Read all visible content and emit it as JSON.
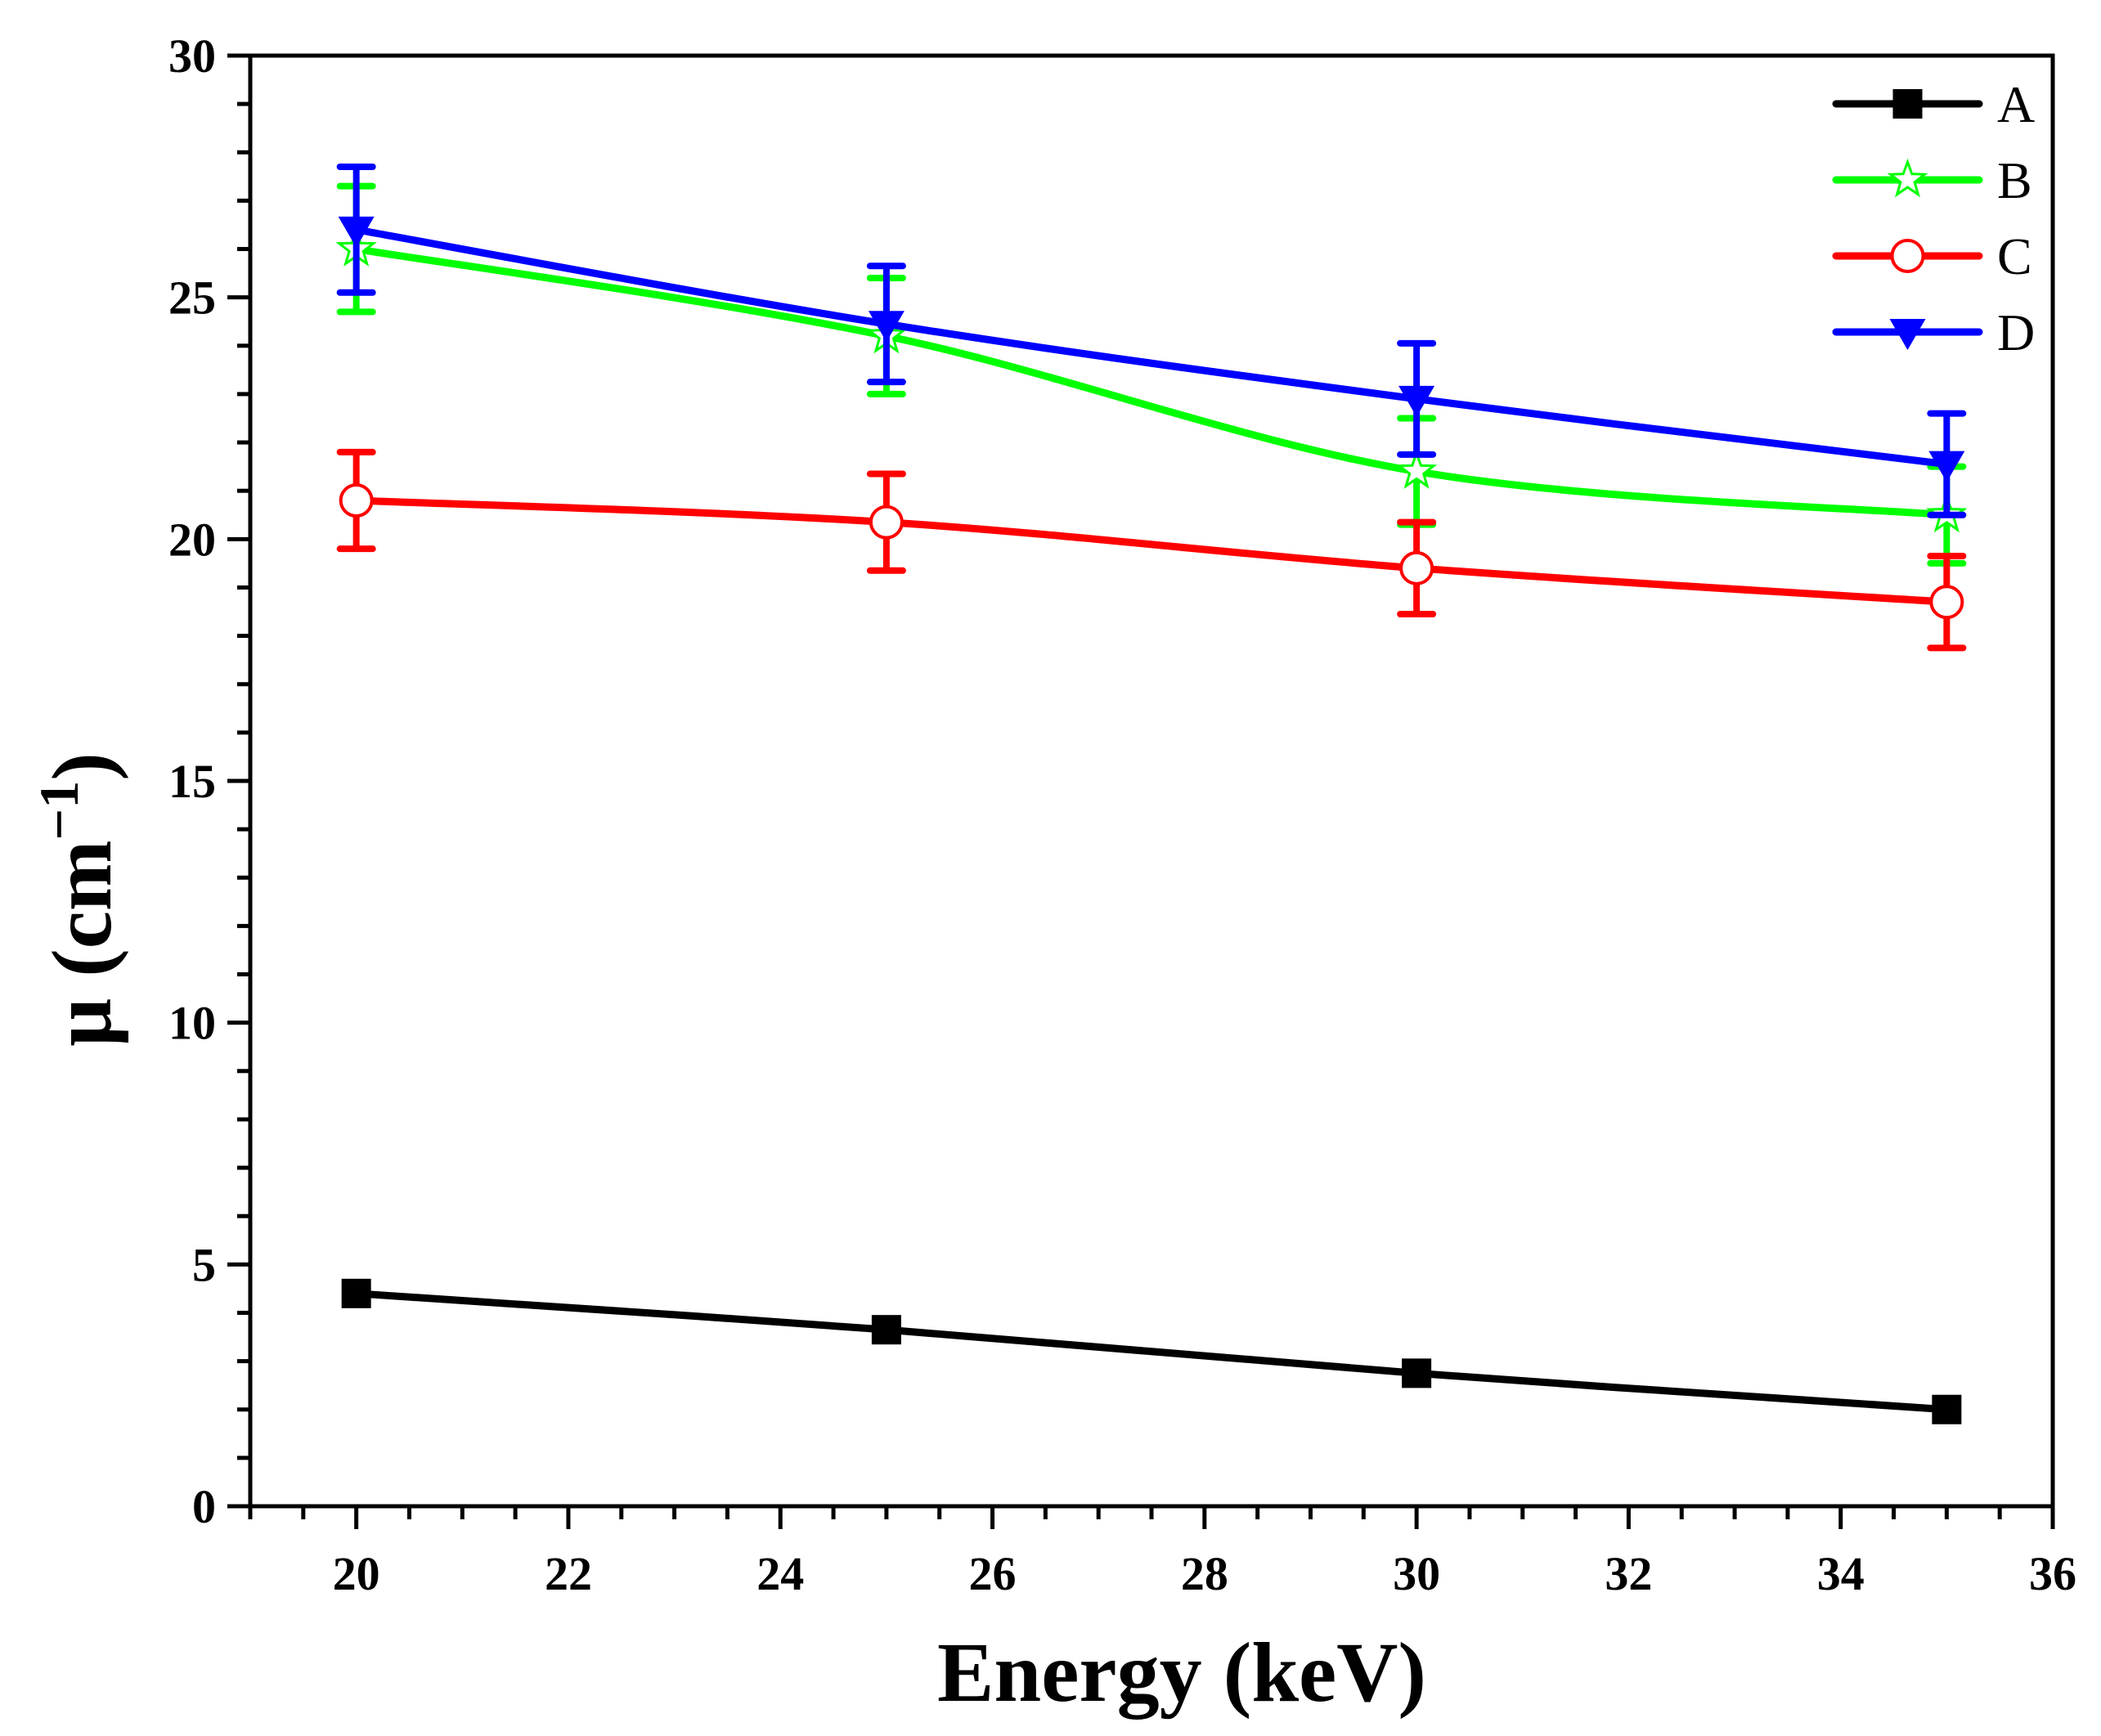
{
  "chart_data": {
    "type": "line",
    "title": "",
    "xlabel": "Energy (keV)",
    "ylabel_main": "μ (cm",
    "ylabel_sup": "−1",
    "ylabel_close": ")",
    "xlim": [
      19,
      36
    ],
    "ylim": [
      0,
      30
    ],
    "x_ticks": [
      20,
      22,
      24,
      26,
      28,
      30,
      32,
      34,
      36
    ],
    "y_ticks": [
      0,
      5,
      10,
      15,
      20,
      25,
      30
    ],
    "legend_position": "top-right",
    "grid": false,
    "series": [
      {
        "name": "A",
        "color": "#000000",
        "marker": "square",
        "x": [
          20,
          25,
          30,
          35
        ],
        "y": [
          4.4,
          3.65,
          2.75,
          2.0
        ],
        "error": null
      },
      {
        "name": "B",
        "color": "#00ff00",
        "marker": "star-open",
        "x": [
          20,
          25,
          30,
          35
        ],
        "y": [
          26.0,
          24.2,
          21.4,
          20.5
        ],
        "error": [
          1.3,
          1.2,
          1.1,
          1.0
        ]
      },
      {
        "name": "C",
        "color": "#ff0000",
        "marker": "circle-open",
        "x": [
          20,
          25,
          30,
          35
        ],
        "y": [
          20.8,
          20.35,
          19.4,
          18.7
        ],
        "error": [
          1.0,
          1.0,
          0.95,
          0.95
        ]
      },
      {
        "name": "D",
        "color": "#0000ff",
        "marker": "triangle-down",
        "x": [
          20,
          25,
          30,
          35
        ],
        "y": [
          26.4,
          24.45,
          22.9,
          21.55
        ],
        "error": [
          1.3,
          1.2,
          1.15,
          1.05
        ]
      }
    ]
  }
}
